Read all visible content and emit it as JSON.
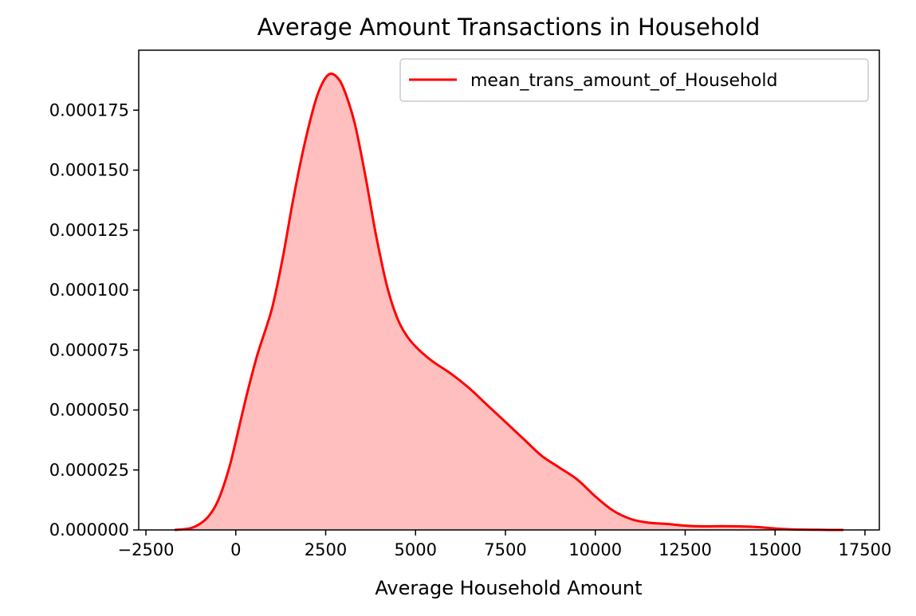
{
  "chart_data": {
    "type": "area",
    "title": "Average Amount Transactions in Household",
    "xlabel": "Average Household Amount",
    "ylabel": "",
    "xlim": [
      -2700,
      17900
    ],
    "ylim": [
      0,
      0.0002
    ],
    "x_ticks": [
      -2500,
      0,
      2500,
      5000,
      7500,
      10000,
      12500,
      15000,
      17500
    ],
    "x_tick_labels": [
      "−2500",
      "0",
      "2500",
      "5000",
      "7500",
      "10000",
      "12500",
      "15000",
      "17500"
    ],
    "y_ticks": [
      0,
      2.5e-05,
      5e-05,
      7.5e-05,
      0.0001,
      0.000125,
      0.00015,
      0.000175
    ],
    "y_tick_labels": [
      "0.000000",
      "0.000025",
      "0.000050",
      "0.000075",
      "0.000100",
      "0.000125",
      "0.000150",
      "0.000175"
    ],
    "grid": false,
    "legend_position": "top-right",
    "series": [
      {
        "name": "mean_trans_amount_of_Household",
        "color": "#ff0000",
        "fill_color": "#ffbfbf",
        "x": [
          -1700,
          -1200,
          -800,
          -500,
          -200,
          0,
          300,
          600,
          1000,
          1300,
          1600,
          1900,
          2200,
          2400,
          2600,
          2800,
          3000,
          3300,
          3600,
          3900,
          4200,
          4500,
          4800,
          5100,
          5500,
          6000,
          6500,
          7000,
          7500,
          8000,
          8500,
          9000,
          9500,
          10000,
          10500,
          11000,
          11500,
          12000,
          12500,
          13000,
          13500,
          14000,
          14500,
          15000,
          15500,
          16000,
          16500,
          16900
        ],
        "y": [
          0,
          1e-06,
          5e-06,
          1.2e-05,
          2.5e-05,
          3.7e-05,
          5.6e-05,
          7.3e-05,
          9.2e-05,
          0.000113,
          0.000138,
          0.00016,
          0.000178,
          0.000186,
          0.00019,
          0.000189,
          0.000184,
          0.00017,
          0.000148,
          0.000123,
          0.000102,
          8.8e-05,
          8e-05,
          7.5e-05,
          7e-05,
          6.5e-05,
          5.9e-05,
          5.2e-05,
          4.5e-05,
          3.8e-05,
          3.1e-05,
          2.6e-05,
          2.1e-05,
          1.4e-05,
          8e-06,
          4.5e-06,
          3e-06,
          2.5e-06,
          1.8e-06,
          1.5e-06,
          1.6e-06,
          1.5e-06,
          1.2e-06,
          6e-07,
          2e-07,
          1e-07,
          0,
          0
        ]
      }
    ]
  }
}
